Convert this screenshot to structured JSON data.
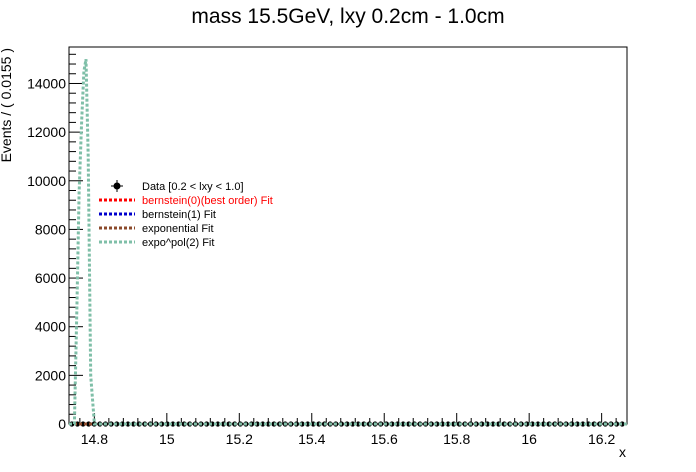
{
  "chart_data": {
    "type": "line",
    "title": "mass 15.5GeV, lxy 0.2cm - 1.0cm",
    "xlabel": "x",
    "ylabel": "Events / ( 0.0155 )",
    "xlim": [
      14.73,
      16.27
    ],
    "ylim": [
      0,
      15500
    ],
    "x_ticks": [
      14.8,
      15,
      15.2,
      15.4,
      15.6,
      15.8,
      16,
      16.2
    ],
    "x_tick_labels": [
      "14.8",
      "15",
      "15.2",
      "15.4",
      "15.6",
      "15.8",
      "16",
      "16.2"
    ],
    "y_ticks": [
      0,
      2000,
      4000,
      6000,
      8000,
      10000,
      12000,
      14000
    ],
    "y_tick_labels": [
      "0",
      "2000",
      "4000",
      "6000",
      "8000",
      "10000",
      "12000",
      "14000"
    ],
    "legend_position": "upper-left",
    "series": [
      {
        "name": "Data [0.2 < lxy < 1.0]",
        "style": "points",
        "color": "#000000",
        "x_start": 14.73,
        "x_end": 16.27,
        "bin_width": 0.0155,
        "value": 0
      },
      {
        "name": "bernstein(0)(best order) Fit",
        "style": "dashed",
        "color": "#ff0000",
        "x": [
          14.73,
          16.27
        ],
        "y": [
          0,
          0
        ]
      },
      {
        "name": "bernstein(1) Fit",
        "style": "dashed",
        "color": "#0000cc",
        "x": [
          14.73,
          16.27
        ],
        "y": [
          0,
          0
        ]
      },
      {
        "name": "exponential Fit",
        "style": "dashed",
        "color": "#8b4a2b",
        "x": [
          14.73,
          16.27
        ],
        "y": [
          0,
          0
        ]
      },
      {
        "name": "expo^pol(2) Fit",
        "style": "dashed",
        "color": "#7fbfa8",
        "x": [
          14.73,
          14.745,
          14.752,
          14.758,
          14.765,
          14.771,
          14.777,
          14.783,
          14.79,
          14.8,
          16.27
        ],
        "y": [
          0,
          0,
          5000,
          9500,
          12500,
          14500,
          15000,
          11000,
          2000,
          0,
          0
        ]
      }
    ],
    "legend_entries": [
      {
        "label": "Data [0.2 < lxy < 1.0]",
        "color": "#000000",
        "marker": "point"
      },
      {
        "label": "bernstein(0)(best order) Fit",
        "color": "#ff0000",
        "marker": "dashed"
      },
      {
        "label": "bernstein(1) Fit",
        "color": "#000000",
        "marker": "dashed",
        "line_color": "#0000cc"
      },
      {
        "label": "exponential Fit",
        "color": "#000000",
        "marker": "dashed",
        "line_color": "#8b4a2b"
      },
      {
        "label": "expo^pol(2) Fit",
        "color": "#000000",
        "marker": "dashed",
        "line_color": "#7fbfa8"
      }
    ]
  }
}
